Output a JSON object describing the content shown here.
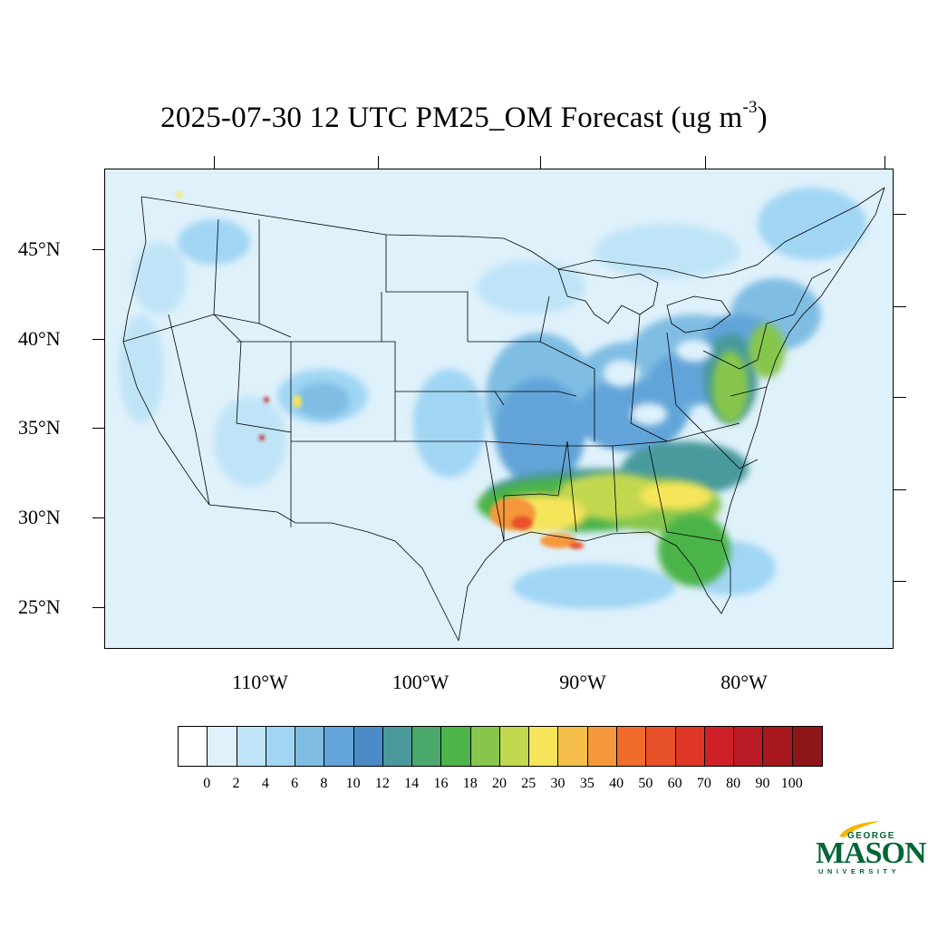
{
  "title": {
    "main": "2025-07-30 12 UTC PM25_OM Forecast (ug m",
    "superscript": "-3",
    "close": ")"
  },
  "axes": {
    "lat_labels": [
      "45°N",
      "40°N",
      "35°N",
      "30°N",
      "25°N"
    ],
    "lon_labels": [
      "110°W",
      "100°W",
      "90°W",
      "80°W"
    ]
  },
  "colorbar": {
    "colors": [
      "#ffffff",
      "#dff1fb",
      "#c0e4f7",
      "#a0d6f4",
      "#80bde3",
      "#62a4d9",
      "#4a8bc7",
      "#4a9a9c",
      "#4aa86c",
      "#4cb449",
      "#86c64d",
      "#c2d84f",
      "#f6e55a",
      "#f6bf4a",
      "#f5973b",
      "#f06b2c",
      "#e8512a",
      "#de3727",
      "#d02027",
      "#bb1b24",
      "#a8181e",
      "#8e1518"
    ],
    "labels": [
      "0",
      "2",
      "4",
      "6",
      "8",
      "10",
      "12",
      "14",
      "16",
      "18",
      "20",
      "25",
      "30",
      "35",
      "40",
      "50",
      "60",
      "70",
      "80",
      "90",
      "100"
    ]
  },
  "logo": {
    "line1": "GEORGE",
    "line2": "MASON",
    "line3": "UNIVERSITY",
    "color": "#006633",
    "accent": "#f2b900"
  }
}
